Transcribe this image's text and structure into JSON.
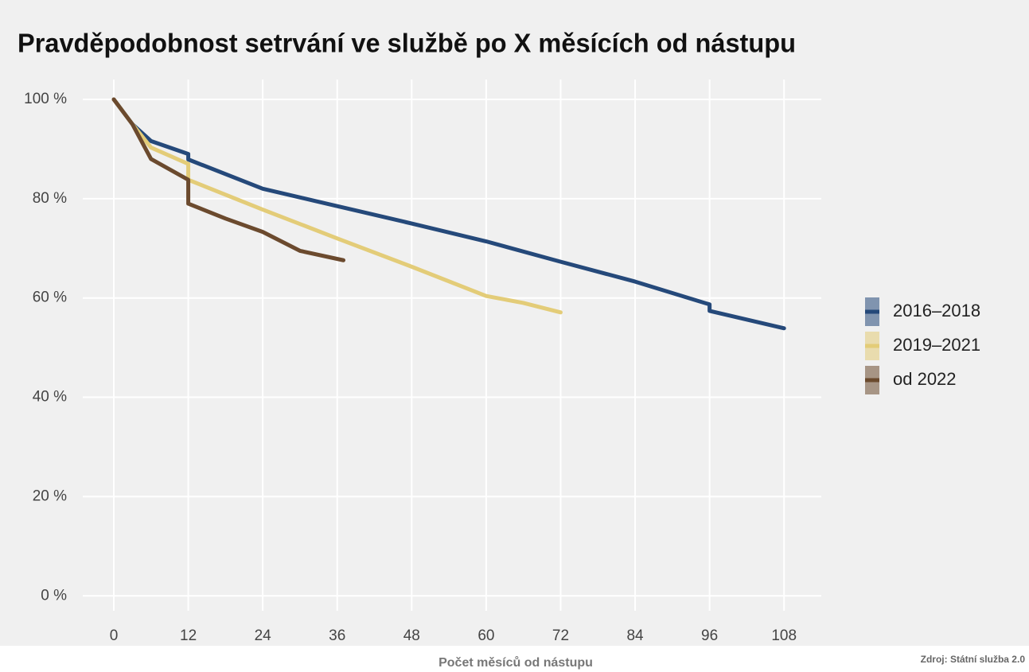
{
  "chart_data": {
    "type": "line",
    "title": "Pravděpodobnost setrvání ve službě po X měsících od nástupu",
    "x_label": "Počet měsíců od nástupu",
    "source": "Zdroj: Státní služba 2.0",
    "series": [
      {
        "name": "2016–2018",
        "color": "#25497a",
        "x": [
          0,
          3,
          6,
          12,
          12,
          24,
          36,
          48,
          60,
          72,
          84,
          96,
          96,
          108
        ],
        "values": [
          100,
          95,
          91.6,
          89,
          87.9,
          82,
          78.5,
          75,
          71.4,
          67.3,
          63.3,
          58.7,
          57.4,
          53.9
        ]
      },
      {
        "name": "2019–2021",
        "color": "#e3cc78",
        "x": [
          0,
          3,
          6,
          12,
          12,
          24,
          36,
          48,
          60,
          66,
          72
        ],
        "values": [
          100,
          95,
          90.3,
          87,
          83.8,
          77.8,
          72,
          66.3,
          60.4,
          59,
          57.1
        ]
      },
      {
        "name": "od 2022",
        "color": "#6b4a2e",
        "x": [
          0,
          3,
          6,
          12,
          12,
          18,
          24,
          30,
          37
        ],
        "values": [
          100,
          95,
          88,
          83.8,
          79,
          76,
          73.3,
          69.5,
          67.6
        ]
      }
    ],
    "xlim": [
      -5,
      114
    ],
    "xticks": [
      0,
      12,
      24,
      36,
      48,
      60,
      72,
      84,
      96,
      108
    ],
    "ylim": [
      -3,
      104
    ],
    "yticks": [
      {
        "value": 0,
        "label": "0 %"
      },
      {
        "value": 20,
        "label": "20 %"
      },
      {
        "value": 40,
        "label": "40 %"
      },
      {
        "value": 60,
        "label": "60 %"
      },
      {
        "value": 80,
        "label": "80 %"
      },
      {
        "value": 100,
        "label": "100 %"
      }
    ],
    "grid": true,
    "legend": "right"
  }
}
